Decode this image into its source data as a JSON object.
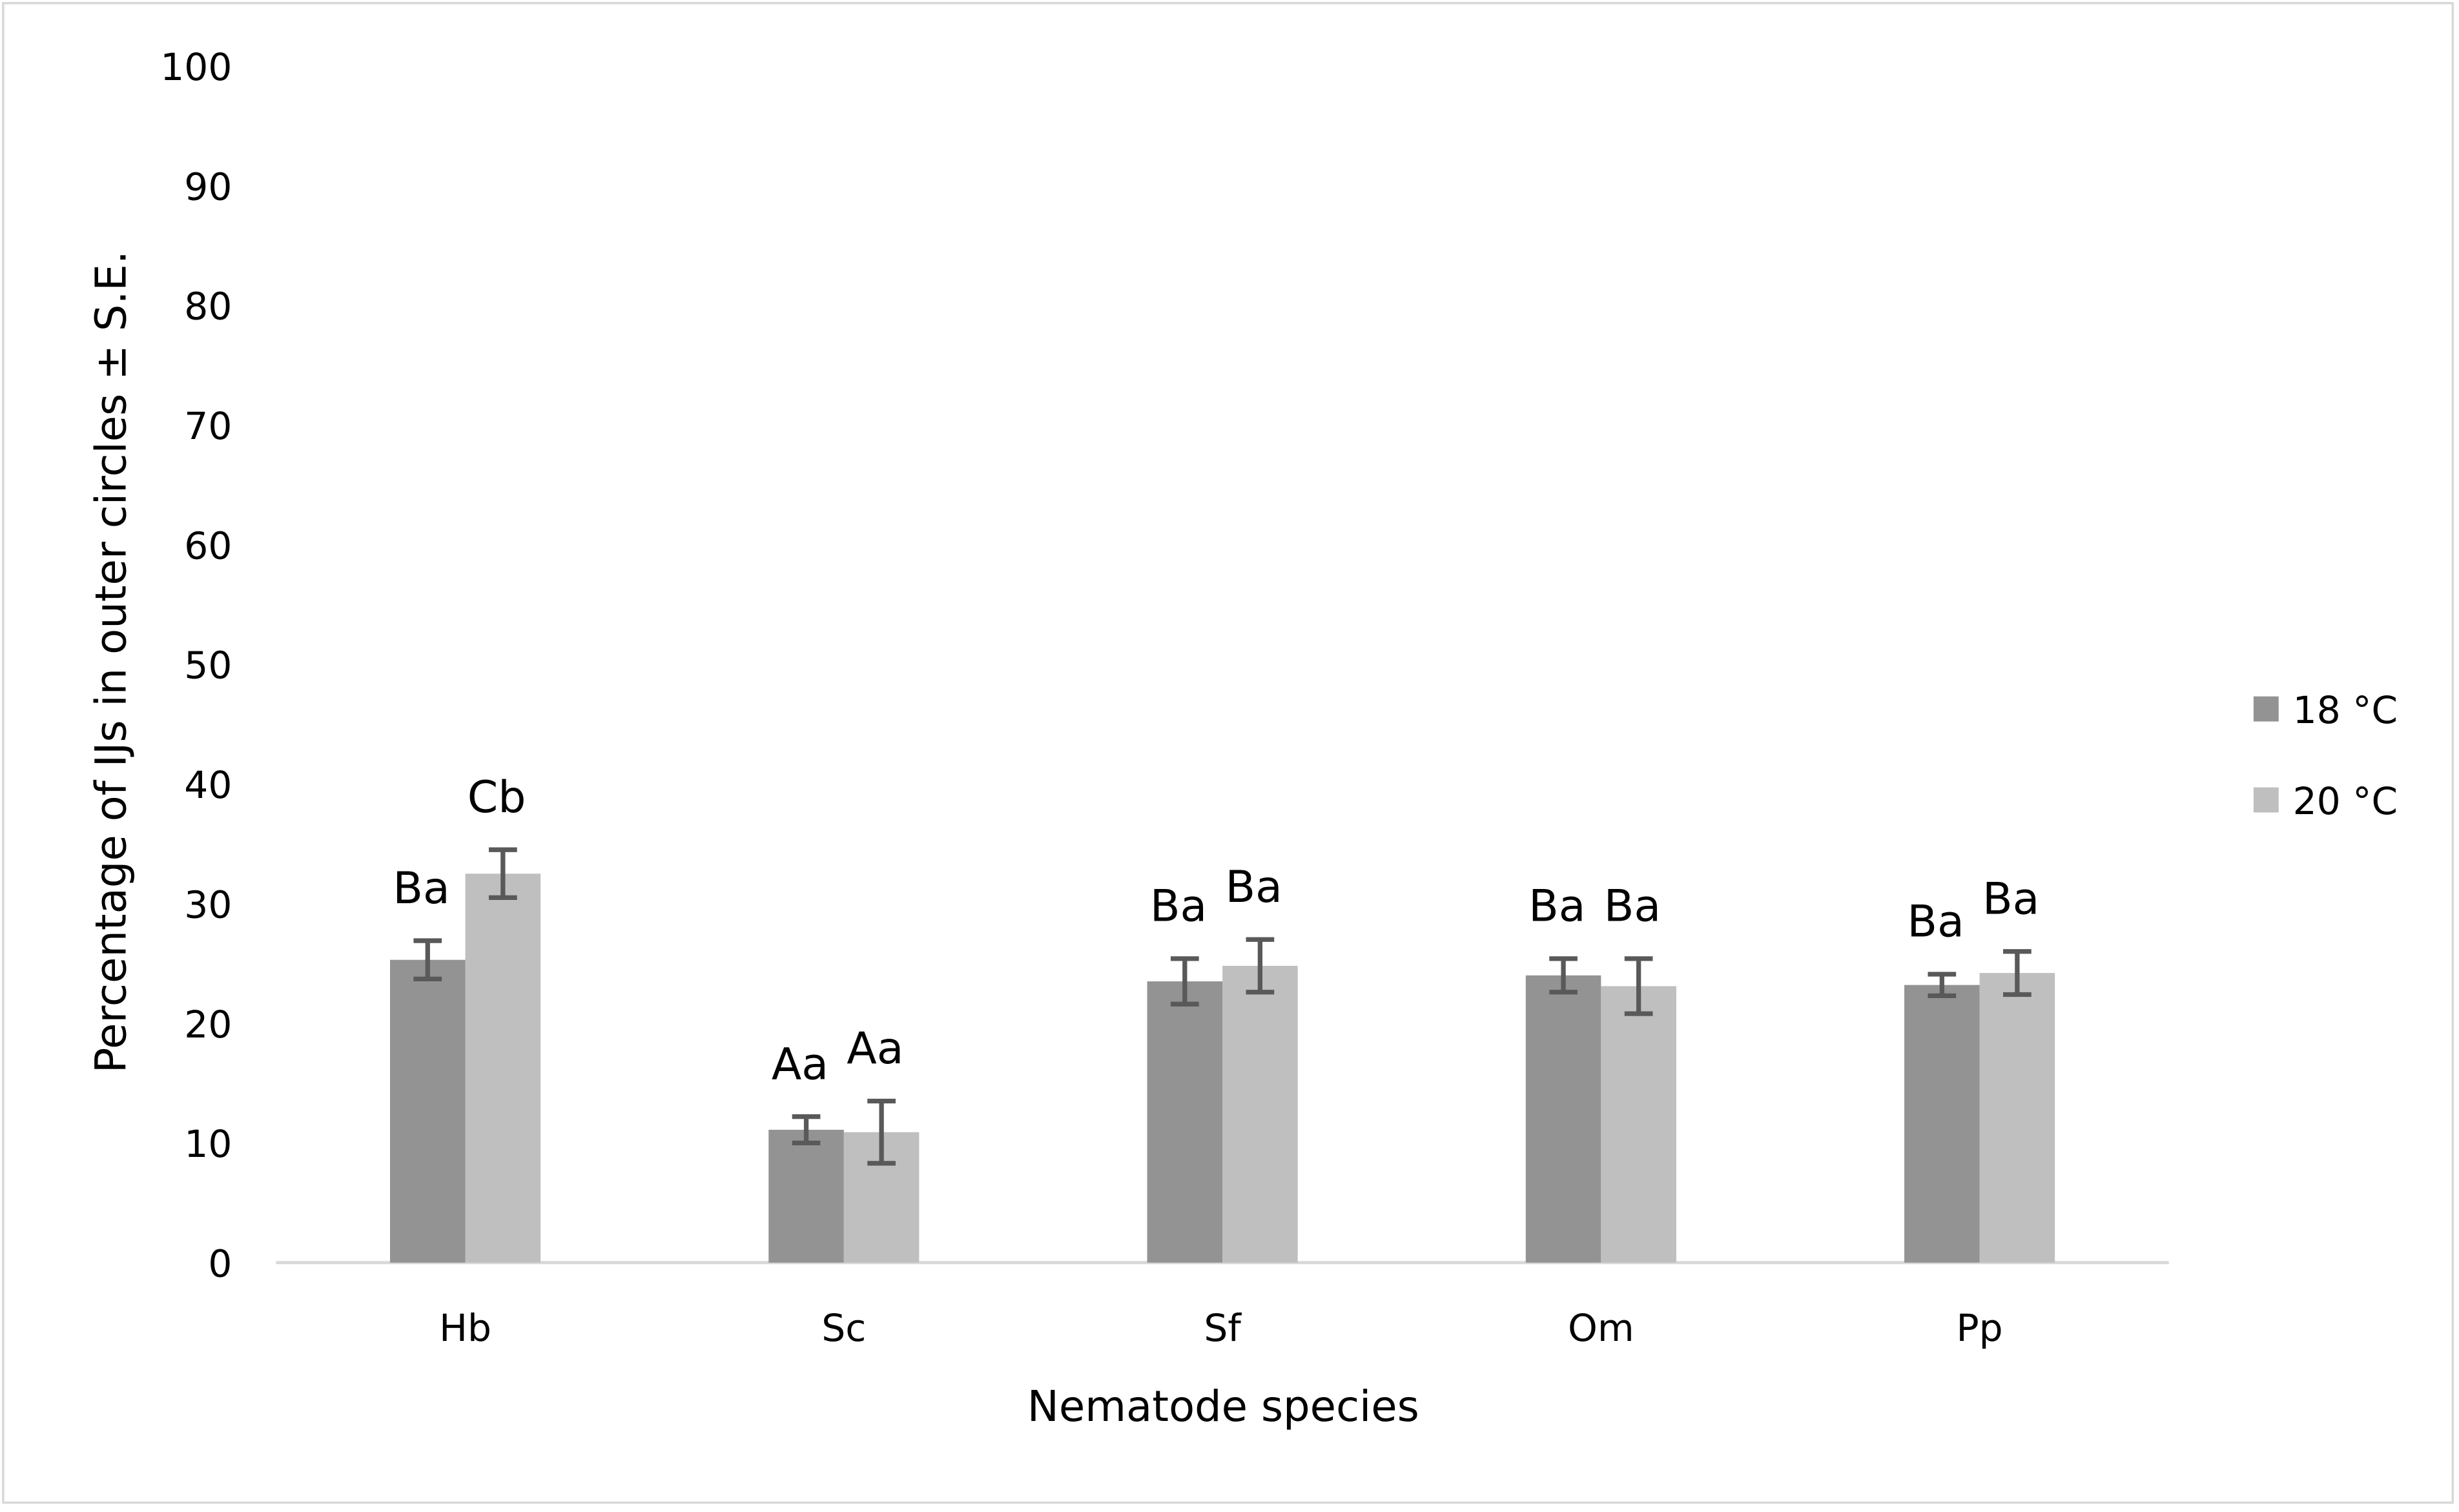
{
  "chart_data": {
    "type": "bar",
    "title": "",
    "xlabel": "Nematode species",
    "ylabel": "Percentage of IJs in outer circles ± S.E.",
    "ylim": [
      0,
      100
    ],
    "yticks": [
      0,
      10,
      20,
      30,
      40,
      50,
      60,
      70,
      80,
      90,
      100
    ],
    "grid": false,
    "legend_position": "right",
    "categories": [
      "Hb",
      "Sc",
      "Sf",
      "Om",
      "Pp"
    ],
    "series": [
      {
        "name": "18 °C",
        "color": "#939393",
        "values": [
          25.3,
          11.1,
          23.5,
          24.0,
          23.2
        ],
        "errors": [
          1.6,
          1.1,
          1.9,
          1.4,
          0.9
        ],
        "labels": [
          "Ba",
          "Aa",
          "Ba",
          "Ba",
          "Ba"
        ]
      },
      {
        "name": "20 °C",
        "color": "#bfbfbf",
        "values": [
          32.5,
          10.9,
          24.8,
          23.1,
          24.2
        ],
        "errors": [
          2.0,
          2.6,
          2.2,
          2.3,
          1.8
        ],
        "labels": [
          "Cb",
          "Aa",
          "Ba",
          "Ba",
          "Ba"
        ]
      }
    ],
    "error_bar_color": "#595959",
    "axis_color": "#d9d9d9"
  }
}
